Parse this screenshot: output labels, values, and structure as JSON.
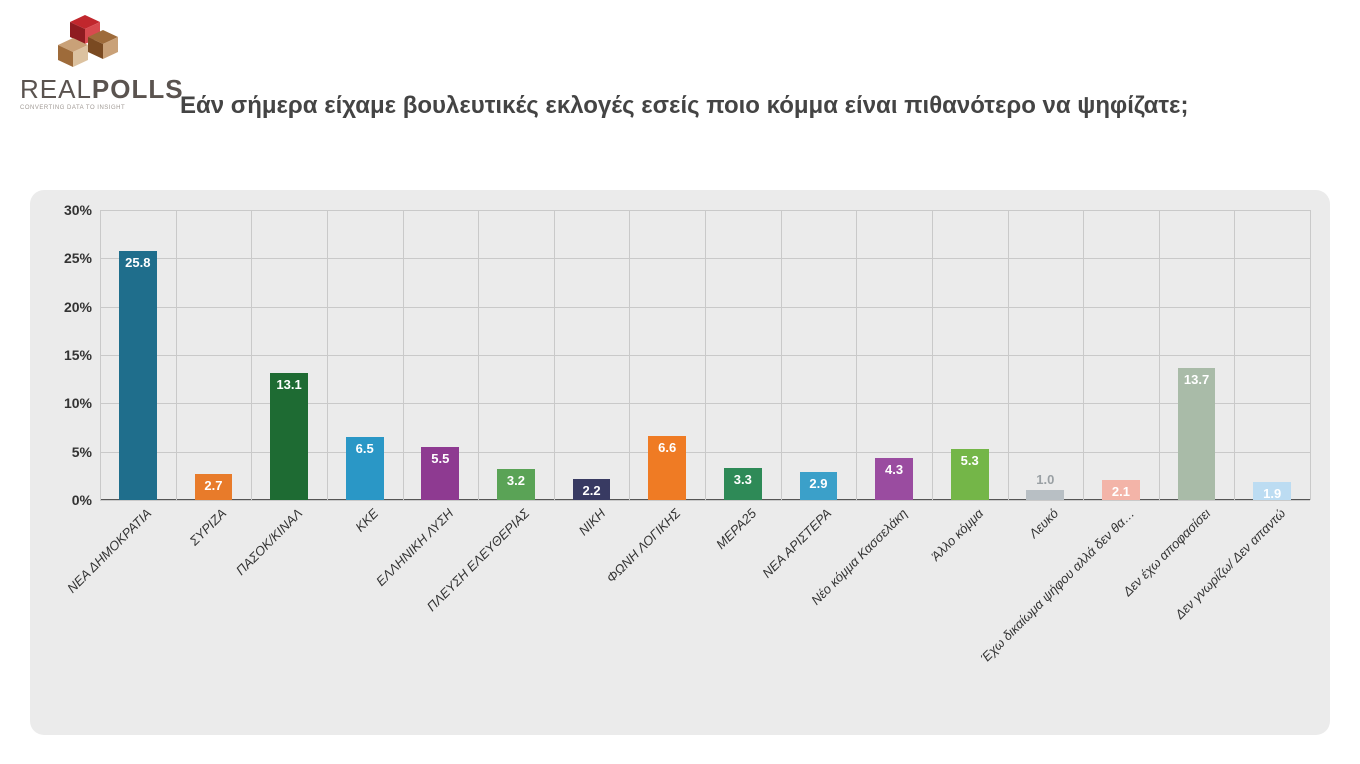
{
  "logo": {
    "text_light": "REAL",
    "text_bold": "POLLS",
    "subtext": "CONVERTING DATA TO INSIGHT",
    "colors": {
      "red": "#c1272d",
      "brown1": "#9e6b3a",
      "brown2": "#7a4a21",
      "tan": "#c9a178"
    }
  },
  "question": "Εάν σήμερα είχαμε βουλευτικές εκλογές εσείς ποιο κόμμα είναι πιθανότερο να ψηφίζατε;",
  "chart": {
    "type": "bar",
    "background_color": "#ebebeb",
    "grid_color": "#c9c9c9",
    "axis_color": "#555555",
    "ylim": [
      0,
      30
    ],
    "ytick_step": 5,
    "ytick_suffix": "%",
    "ytick_fontsize": 14,
    "xlabel_fontsize": 13,
    "bar_label_fontsize": 13,
    "bar_width_ratio": 0.5,
    "categories": [
      "ΝΕΑ ΔΗΜΟΚΡΑΤΙΑ",
      "ΣΥΡΙΖΑ",
      "ΠΑΣΟΚ/ΚΙΝΑΛ",
      "ΚΚΕ",
      "ΕΛΛΗΝΙΚΗ ΛΥΣΗ",
      "ΠΛΕΥΣΗ ΕΛΕΥΘΕΡΙΑΣ",
      "ΝΙΚΗ",
      "ΦΩΝΗ ΛΟΓΙΚΗΣ",
      "ΜΕΡΑ25",
      "ΝΕΑ ΑΡΙΣΤΕΡΑ",
      "Νέο κόμμα Κασσελάκη",
      "Άλλο κόμμα",
      "Λευκό",
      "Έχω δικαίωμα ψήφου αλλά δεν θα…",
      "Δεν έχω αποφασίσει",
      "Δεν γνωρίζω/ Δεν απαντώ"
    ],
    "values": [
      25.8,
      2.7,
      13.1,
      6.5,
      5.5,
      3.2,
      2.2,
      6.6,
      3.3,
      2.9,
      4.3,
      5.3,
      1.0,
      2.1,
      13.7,
      1.9
    ],
    "value_labels": [
      "25.8",
      "2.7",
      "13.1",
      "6.5",
      "5.5",
      "3.2",
      "2.2",
      "6.6",
      "3.3",
      "2.9",
      "4.3",
      "5.3",
      "1.0",
      "2.1",
      "13.7",
      "1.9"
    ],
    "bar_colors": [
      "#1f6e8c",
      "#e87b2a",
      "#1e6b33",
      "#2a97c6",
      "#8e3a91",
      "#5aa356",
      "#383a62",
      "#ef7b24",
      "#2e8a57",
      "#3ba0c9",
      "#9a4ca0",
      "#74b648",
      "#b8bfc4",
      "#f3b4a8",
      "#a9bba8",
      "#bcdcf2"
    ],
    "label_text_colors": [
      "#ffffff",
      "#ffffff",
      "#ffffff",
      "#ffffff",
      "#ffffff",
      "#ffffff",
      "#ffffff",
      "#ffffff",
      "#ffffff",
      "#ffffff",
      "#ffffff",
      "#ffffff",
      "#9aa0a4",
      "#ffffff",
      "#ffffff",
      "#ffffff"
    ]
  }
}
